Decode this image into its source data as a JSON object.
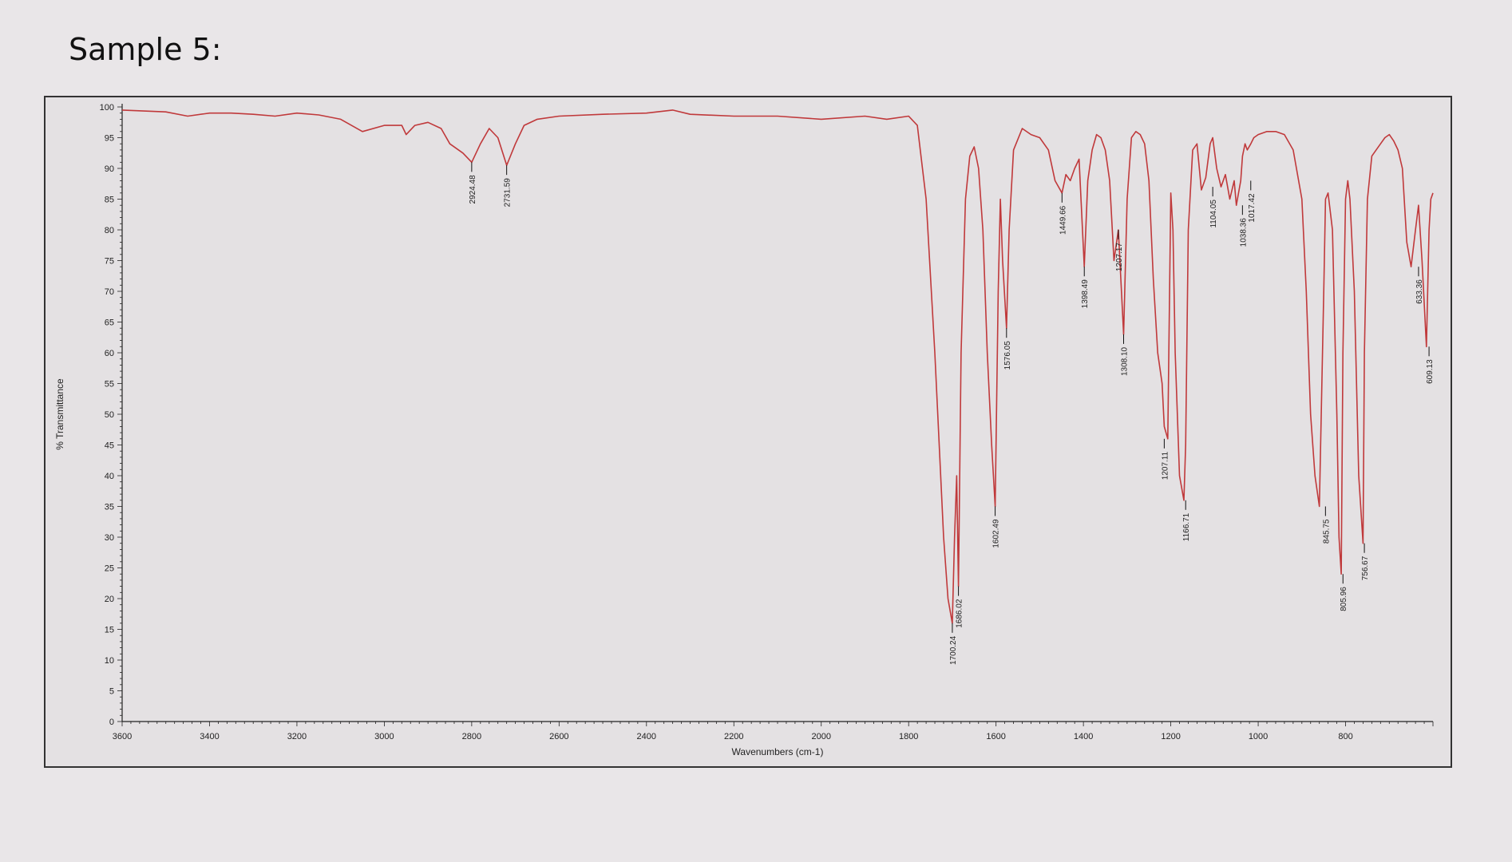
{
  "page": {
    "title": "Sample 5:"
  },
  "chart_data": {
    "type": "line",
    "title": "",
    "xlabel": "Wavenumbers (cm-1)",
    "ylabel": "% Transmittance",
    "xlim": [
      3600,
      600
    ],
    "ylim": [
      0,
      100
    ],
    "x_reversed": true,
    "grid": false,
    "legend": "none",
    "colors": {
      "line": "#c0393b",
      "axis": "#222222"
    },
    "x_ticks": [
      3600,
      3400,
      3200,
      3000,
      2800,
      2600,
      2400,
      2200,
      2000,
      1800,
      1600,
      1400,
      1200,
      1000,
      800
    ],
    "y_ticks": [
      0,
      5,
      10,
      15,
      20,
      25,
      30,
      35,
      40,
      45,
      50,
      55,
      60,
      65,
      70,
      75,
      80,
      85,
      90,
      95,
      100
    ],
    "series": [
      {
        "x": [
          3600,
          3500,
          3450,
          3400,
          3350,
          3300,
          3250,
          3200,
          3150,
          3100,
          3050,
          3000,
          2960,
          2950,
          2930,
          2900,
          2870,
          2850,
          2820,
          2800,
          2780,
          2760,
          2740,
          2720,
          2700,
          2680,
          2650,
          2600,
          2500,
          2400,
          2340,
          2300,
          2200,
          2100,
          2000,
          1900,
          1850,
          1800,
          1780,
          1760,
          1740,
          1720,
          1710,
          1700,
          1695,
          1690,
          1686,
          1680,
          1670,
          1660,
          1650,
          1640,
          1630,
          1620,
          1610,
          1602,
          1595,
          1590,
          1585,
          1576,
          1570,
          1560,
          1540,
          1520,
          1500,
          1480,
          1465,
          1449,
          1440,
          1430,
          1420,
          1410,
          1398,
          1390,
          1380,
          1370,
          1360,
          1350,
          1340,
          1330,
          1320,
          1308,
          1300,
          1290,
          1280,
          1270,
          1260,
          1250,
          1240,
          1230,
          1220,
          1215,
          1207,
          1200,
          1195,
          1190,
          1180,
          1170,
          1166,
          1160,
          1150,
          1140,
          1130,
          1120,
          1110,
          1104,
          1095,
          1085,
          1075,
          1065,
          1055,
          1050,
          1040,
          1036,
          1030,
          1025,
          1017,
          1010,
          1000,
          980,
          960,
          940,
          920,
          900,
          890,
          880,
          870,
          860,
          850,
          846,
          840,
          830,
          820,
          815,
          810,
          806,
          800,
          795,
          790,
          780,
          770,
          760,
          757,
          750,
          740,
          730,
          720,
          710,
          700,
          690,
          680,
          670,
          660,
          650,
          640,
          633,
          625,
          615,
          609,
          605,
          600
        ],
        "y": [
          99.5,
          99.2,
          98.5,
          99.0,
          99.0,
          98.8,
          98.5,
          99.0,
          98.7,
          98.0,
          96.0,
          97.0,
          97.0,
          95.5,
          97.0,
          97.5,
          96.5,
          94.0,
          92.5,
          91.0,
          94.0,
          96.5,
          95.0,
          90.5,
          94.0,
          97.0,
          98.0,
          98.5,
          98.8,
          99.0,
          99.5,
          98.8,
          98.5,
          98.5,
          98.0,
          98.5,
          98.0,
          98.5,
          97.0,
          85.0,
          60.0,
          30.0,
          20.0,
          16.0,
          30.0,
          40.0,
          22.0,
          60.0,
          85.0,
          92.0,
          93.5,
          90.0,
          80.0,
          60.0,
          45.0,
          35.0,
          70.0,
          85.0,
          75.0,
          64.0,
          80.0,
          93.0,
          96.5,
          95.5,
          95.0,
          93.0,
          88.0,
          86.0,
          89.0,
          88.0,
          90.0,
          91.5,
          74.0,
          88.0,
          93.0,
          95.5,
          95.0,
          93.0,
          88.0,
          75.0,
          80.0,
          63.0,
          85.0,
          95.0,
          96.0,
          95.5,
          94.0,
          88.0,
          72.0,
          60.0,
          55.0,
          48.0,
          46.0,
          86.0,
          80.0,
          60.0,
          40.0,
          36.0,
          45.0,
          80.0,
          93.0,
          94.0,
          86.5,
          88.5,
          94.0,
          95.0,
          90.0,
          87.0,
          89.0,
          85.0,
          88.0,
          84.0,
          88.0,
          92.0,
          94.0,
          93.0,
          94.0,
          95.0,
          95.5,
          96.0,
          96.0,
          95.5,
          93.0,
          85.0,
          70.0,
          50.0,
          40.0,
          35.0,
          70.0,
          85.0,
          86.0,
          80.0,
          50.0,
          30.0,
          24.0,
          60.0,
          85.0,
          88.0,
          85.0,
          70.0,
          40.0,
          29.0,
          60.0,
          85.0,
          92.0,
          93.0,
          94.0,
          95.0,
          95.5,
          94.5,
          93.0,
          90.0,
          78.0,
          74.0,
          80.0,
          84.0,
          75.0,
          61.0,
          80.0,
          85.0,
          86.0
        ]
      }
    ],
    "annotations": [
      "2924.48",
      "2731.59",
      "1700.24",
      "1686.02",
      "1602.49",
      "1576.05",
      "1449.66",
      "1398.49",
      "1308.10",
      "1207.17",
      "1207.11",
      "1166.71",
      "1104.05",
      "1038.36",
      "1017.42",
      "845.75",
      "805.96",
      "756.67",
      "633.36",
      "609.13"
    ],
    "annotation_positions": [
      {
        "x": 2800,
        "y": 91
      },
      {
        "x": 2720,
        "y": 90.5
      },
      {
        "x": 1700,
        "y": 16
      },
      {
        "x": 1686,
        "y": 22
      },
      {
        "x": 1602,
        "y": 35
      },
      {
        "x": 1576,
        "y": 64
      },
      {
        "x": 1449,
        "y": 86
      },
      {
        "x": 1398,
        "y": 74
      },
      {
        "x": 1308,
        "y": 63
      },
      {
        "x": 1320,
        "y": 80
      },
      {
        "x": 1215,
        "y": 46
      },
      {
        "x": 1166,
        "y": 36
      },
      {
        "x": 1104,
        "y": 87
      },
      {
        "x": 1036,
        "y": 84
      },
      {
        "x": 1017,
        "y": 88
      },
      {
        "x": 846,
        "y": 35
      },
      {
        "x": 806,
        "y": 24
      },
      {
        "x": 757,
        "y": 29
      },
      {
        "x": 633,
        "y": 74
      },
      {
        "x": 609,
        "y": 61
      }
    ]
  }
}
